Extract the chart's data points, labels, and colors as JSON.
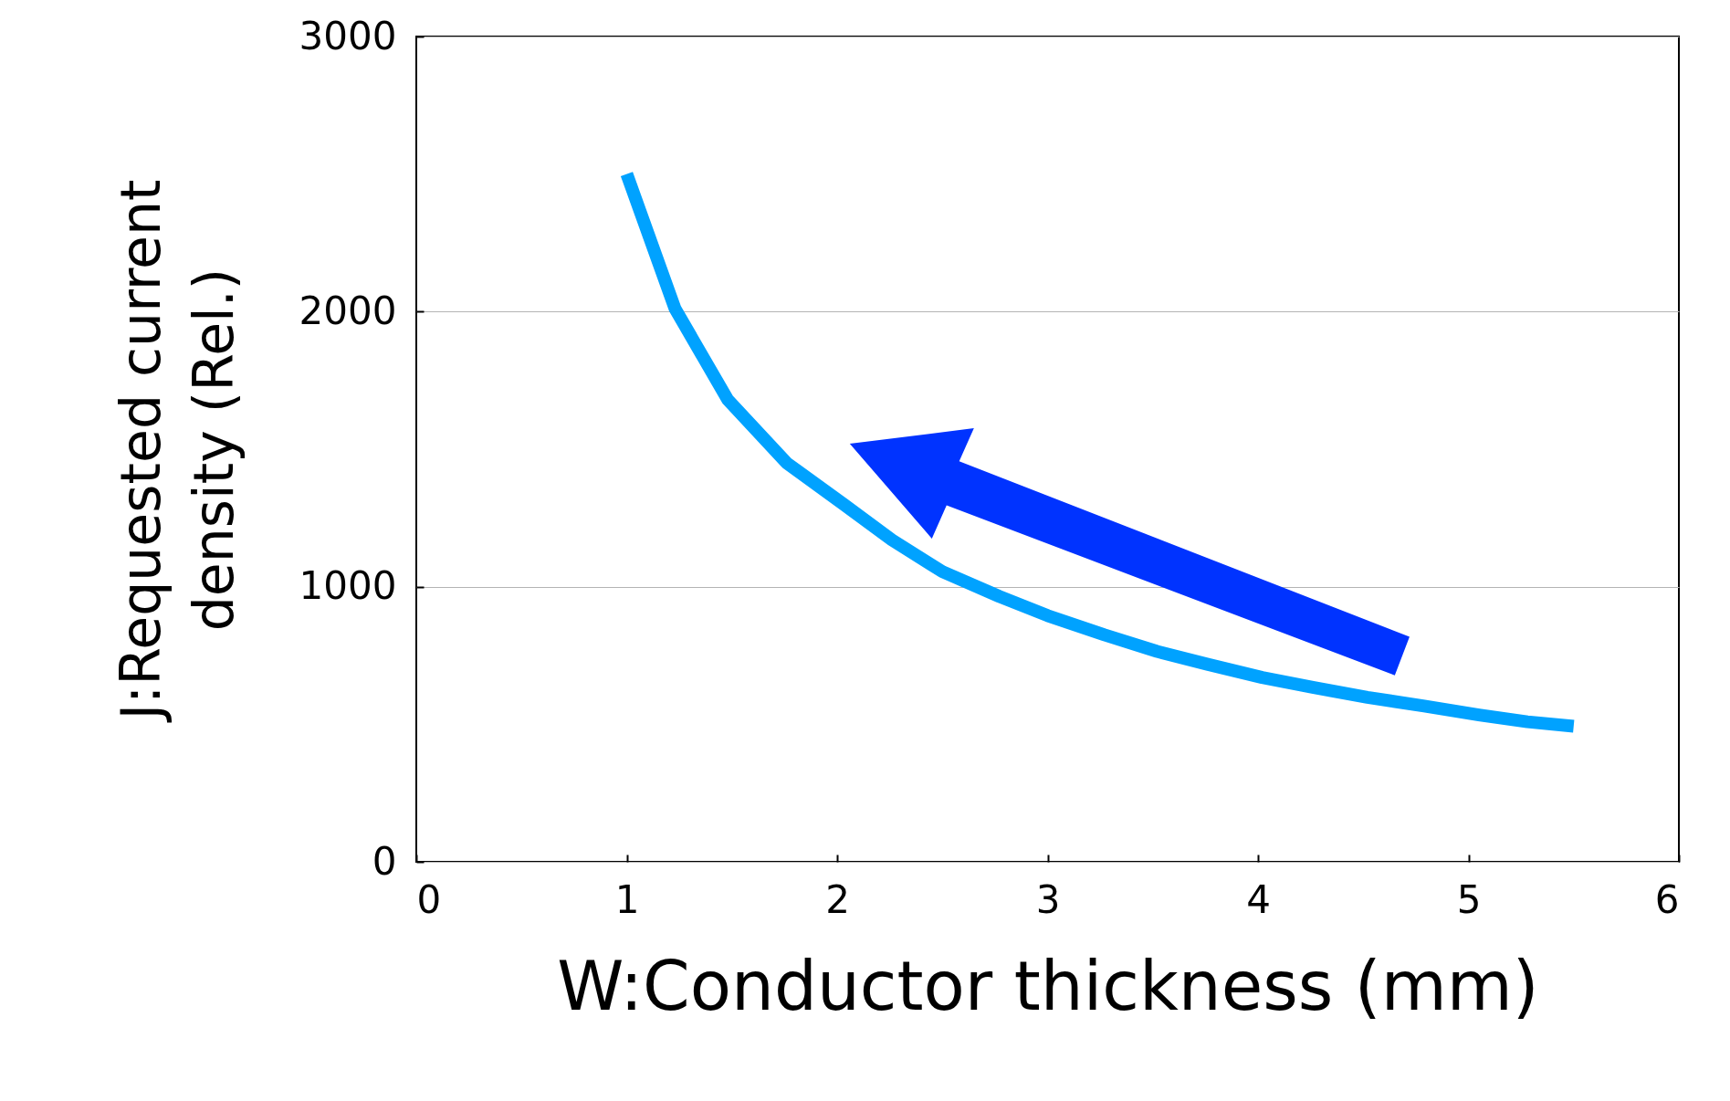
{
  "chart_data": {
    "type": "line",
    "xlabel": "W:Conductor thickness (mm)",
    "ylabel": "J:Requested current density  (Rel.)",
    "x": [
      1.0,
      1.23,
      1.48,
      1.76,
      2.03,
      2.26,
      2.5,
      2.77,
      3.0,
      3.27,
      3.52,
      3.76,
      4.02,
      4.26,
      4.52,
      4.79,
      5.05,
      5.28,
      5.5
    ],
    "series": [
      {
        "color": "#00a2ff",
        "values": [
          2500,
          2010,
          1680,
          1450,
          1300,
          1170,
          1055,
          965,
          895,
          825,
          765,
          718,
          670,
          634,
          598,
          566,
          534,
          509,
          493
        ]
      }
    ],
    "xlim": [
      0,
      6
    ],
    "xticks": [
      0,
      1,
      2,
      3,
      4,
      5,
      6
    ],
    "ylim": [
      0,
      3000
    ],
    "yticks": [
      0,
      1000,
      2000,
      3000
    ],
    "grid": "y",
    "marker": "none",
    "line_style": "solid"
  }
}
